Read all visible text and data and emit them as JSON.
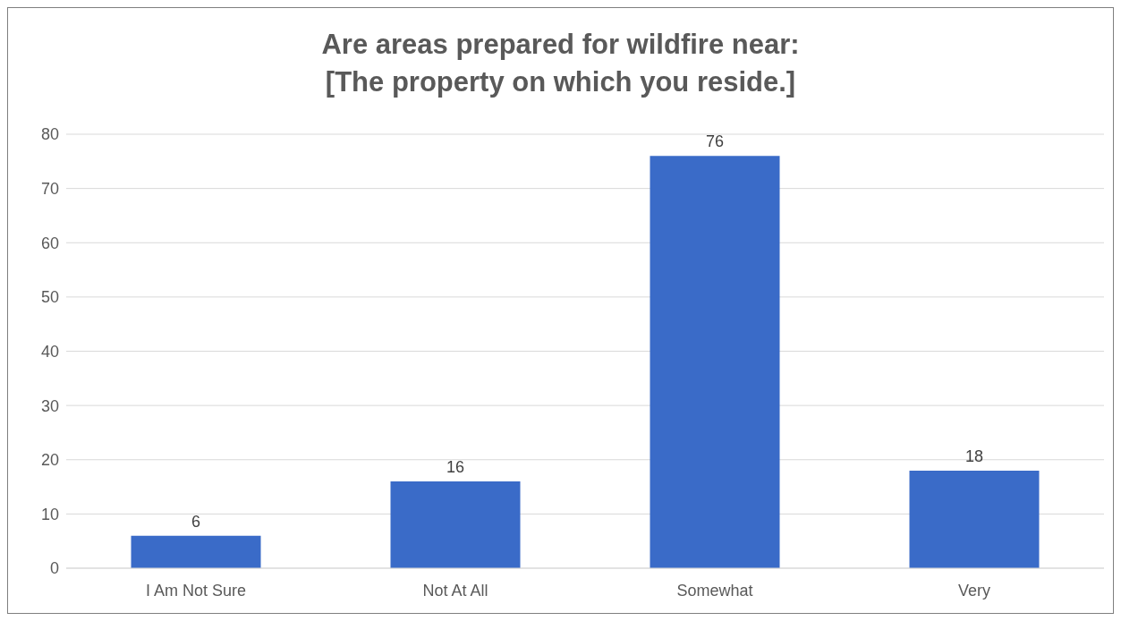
{
  "chart_data": {
    "type": "bar",
    "title": "Are areas prepared for wildfire near:\n[The property on which you reside.]",
    "categories": [
      "I Am Not Sure",
      "Not At All",
      "Somewhat",
      "Very"
    ],
    "values": [
      6,
      16,
      76,
      18
    ],
    "color": "#3a6bc8",
    "ylim": [
      0,
      80
    ],
    "yticks": [
      0,
      10,
      20,
      30,
      40,
      50,
      60,
      70,
      80
    ],
    "grid": "y",
    "data_labels": true,
    "legend": false
  }
}
